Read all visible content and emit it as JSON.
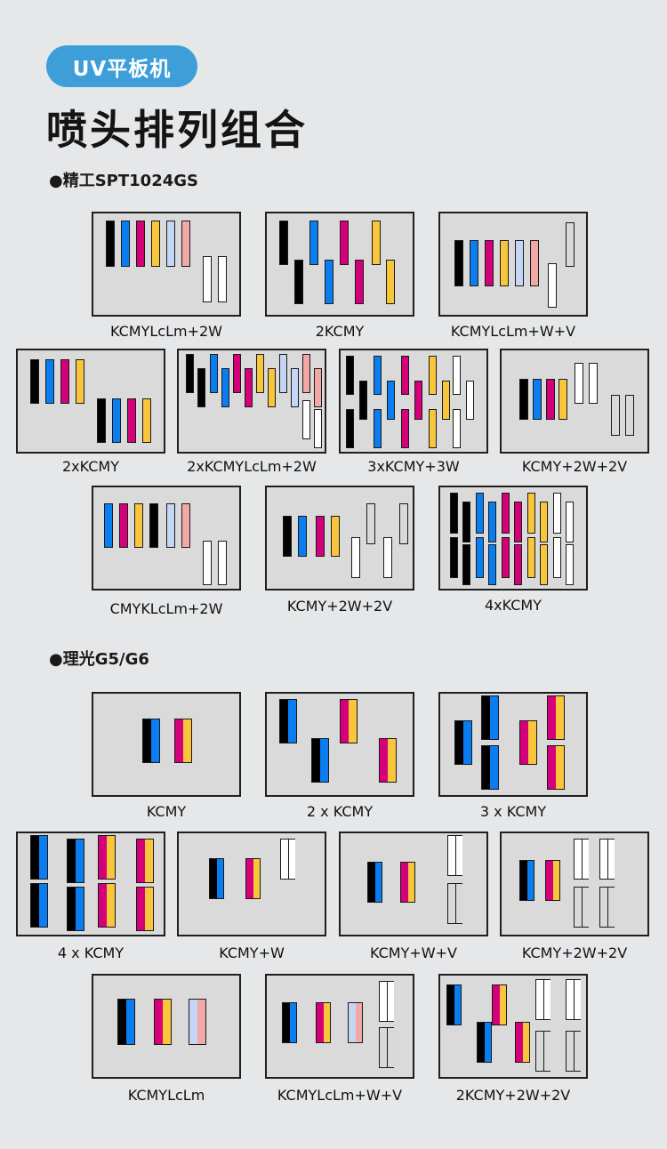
{
  "header": {
    "badge": "UV平板机",
    "title": "喷头排列组合"
  },
  "colors": {
    "K": "#000000",
    "C": "#0a7df0",
    "M": "#d4007a",
    "Y": "#f8c63a",
    "Lc": "#c5d5f4",
    "Lm": "#f2a9a6",
    "W": "#ffffff",
    "V": "#d9d9d9",
    "accent": "#3d9ed8"
  },
  "sections": [
    {
      "label": "●精工SPT1024GS",
      "panels": [
        {
          "caption": "KCMYLcLm+2W"
        },
        {
          "caption": "2KCMY"
        },
        {
          "caption": "KCMYLcLm+W+V"
        },
        {
          "caption": "2xKCMY"
        },
        {
          "caption": "2xKCMYLcLm+2W"
        },
        {
          "caption": "3xKCMY+3W"
        },
        {
          "caption": "KCMY+2W+2V"
        },
        {
          "caption": "CMYKLcLm+2W"
        },
        {
          "caption": "KCMY+2W+2V"
        },
        {
          "caption": "4xKCMY"
        }
      ]
    },
    {
      "label": "●理光G5/G6",
      "panels": [
        {
          "caption": "KCMY"
        },
        {
          "caption": "2 x KCMY"
        },
        {
          "caption": "3 x KCMY"
        },
        {
          "caption": "4 x KCMY"
        },
        {
          "caption": "KCMY+W"
        },
        {
          "caption": "KCMY+W+V"
        },
        {
          "caption": "KCMY+2W+2V"
        },
        {
          "caption": "KCMYLcLm"
        },
        {
          "caption": "KCMYLcLm+W+V"
        },
        {
          "caption": "2KCMY+2W+2V"
        }
      ]
    }
  ]
}
